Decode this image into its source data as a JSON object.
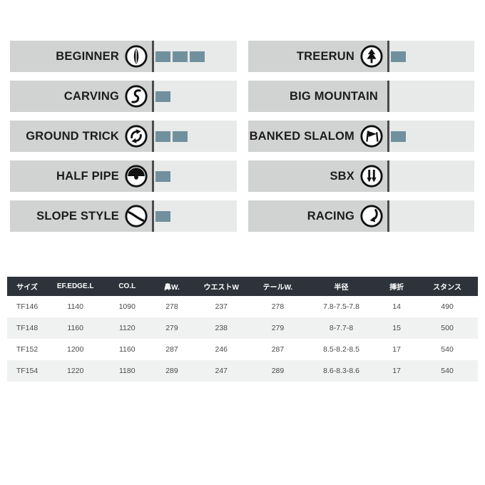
{
  "styles": {
    "bar_color": "#71909e",
    "label_bg": "#d1d2d2",
    "bars_bg": "#e8e9e9",
    "divider_color": "#4a4a4a",
    "table_header_bg": "#2d323b",
    "table_alt_row_bg": "#f0f1f1"
  },
  "ratings": {
    "max_bars": 5,
    "left": [
      {
        "label": "BEGINNER",
        "icon": "snowboard-icon",
        "bars": 3
      },
      {
        "label": "CARVING",
        "icon": "s-curve-icon",
        "bars": 1
      },
      {
        "label": "GROUND TRICK",
        "icon": "rotate-arrows-icon",
        "bars": 2
      },
      {
        "label": "HALF PIPE",
        "icon": "halfpipe-icon",
        "bars": 1
      },
      {
        "label": "SLOPE STYLE",
        "icon": "slope-curve-icon",
        "bars": 1
      }
    ],
    "right": [
      {
        "label": "TREERUN",
        "icon": "pine-tree-icon",
        "bars": 1
      },
      {
        "label": "BIG MOUNTAIN",
        "icon": null,
        "bars": 0
      },
      {
        "label": "BANKED SLALOM",
        "icon": "gate-flag-icon",
        "bars": 1
      },
      {
        "label": "SBX",
        "icon": "double-down-arrow-icon",
        "bars": 0
      },
      {
        "label": "RACING",
        "icon": "curved-arrow-icon",
        "bars": 0
      }
    ]
  },
  "table": {
    "headers": [
      "サイズ",
      "EF.EDGE.L",
      "CO.L",
      "鼻W.",
      "ウエストW",
      "テールW.",
      "半径",
      "挿折",
      "スタンス"
    ],
    "rows": [
      [
        "TF146",
        "1140",
        "1090",
        "278",
        "237",
        "278",
        "7.8-7.5-7.8",
        "14",
        "490"
      ],
      [
        "TF148",
        "1160",
        "1120",
        "279",
        "238",
        "279",
        "8-7.7-8",
        "15",
        "500"
      ],
      [
        "TF152",
        "1200",
        "1160",
        "287",
        "246",
        "287",
        "8.5-8.2-8.5",
        "17",
        "540"
      ],
      [
        "TF154",
        "1220",
        "1180",
        "289",
        "247",
        "289",
        "8.6-8.3-8.6",
        "17",
        "540"
      ]
    ]
  }
}
